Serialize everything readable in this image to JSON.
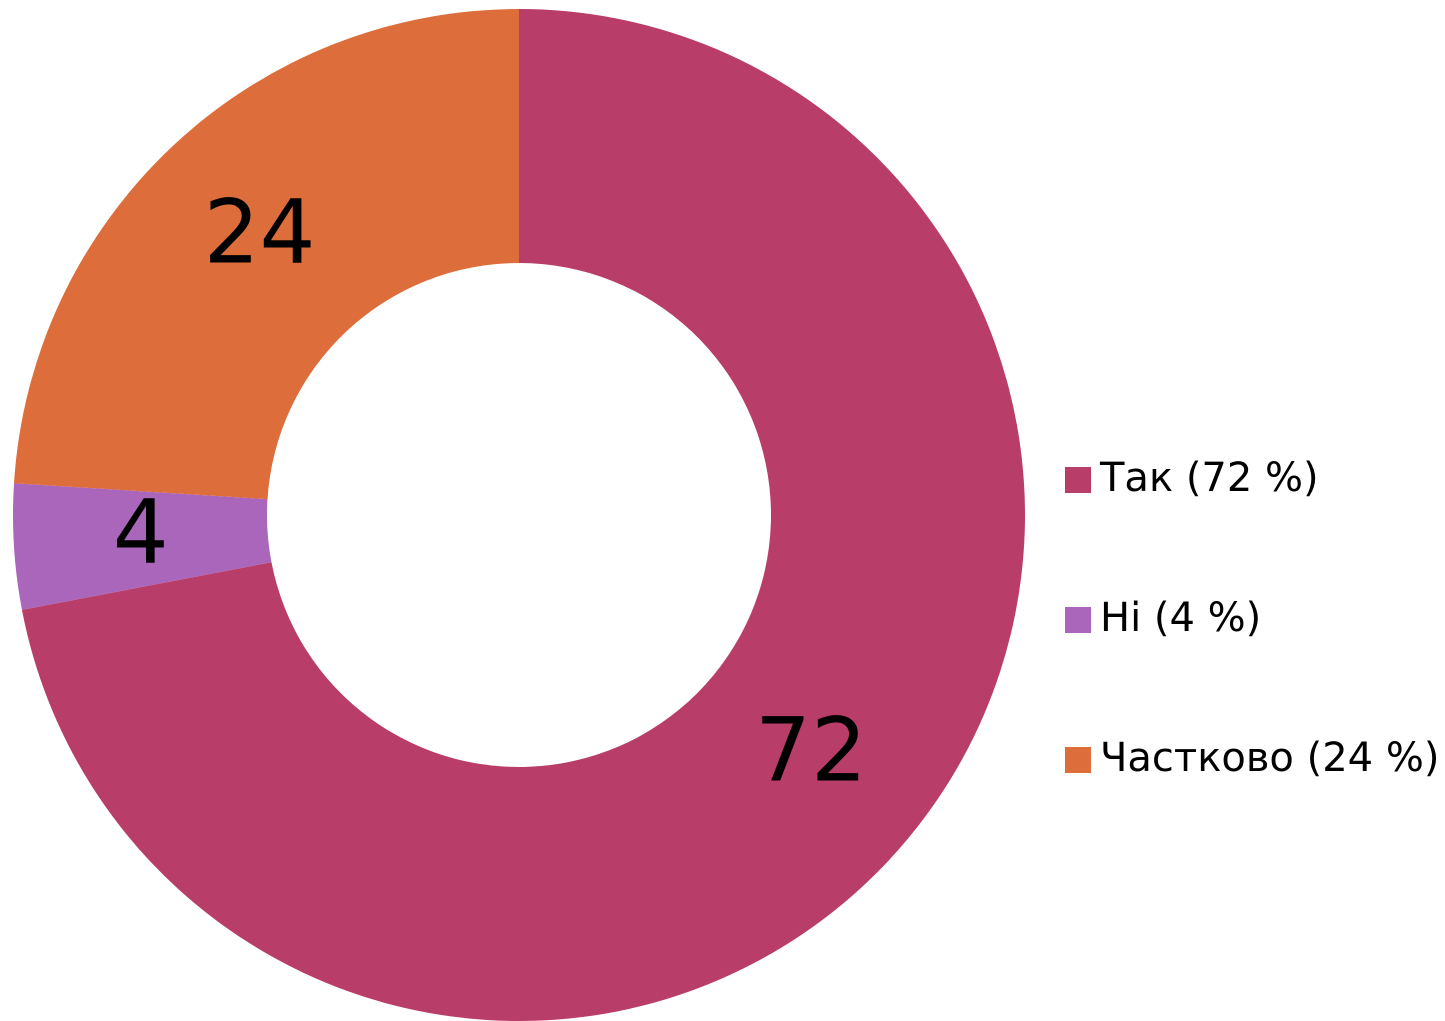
{
  "chart_data": {
    "type": "donut",
    "categories": [
      "Так (72 %)",
      "Ні (4 %)",
      "Частково (24 %)"
    ],
    "values": [
      72,
      4,
      24
    ],
    "colors": [
      "#b93d69",
      "#a966bb",
      "#dd6d3a"
    ],
    "legend": "right"
  }
}
